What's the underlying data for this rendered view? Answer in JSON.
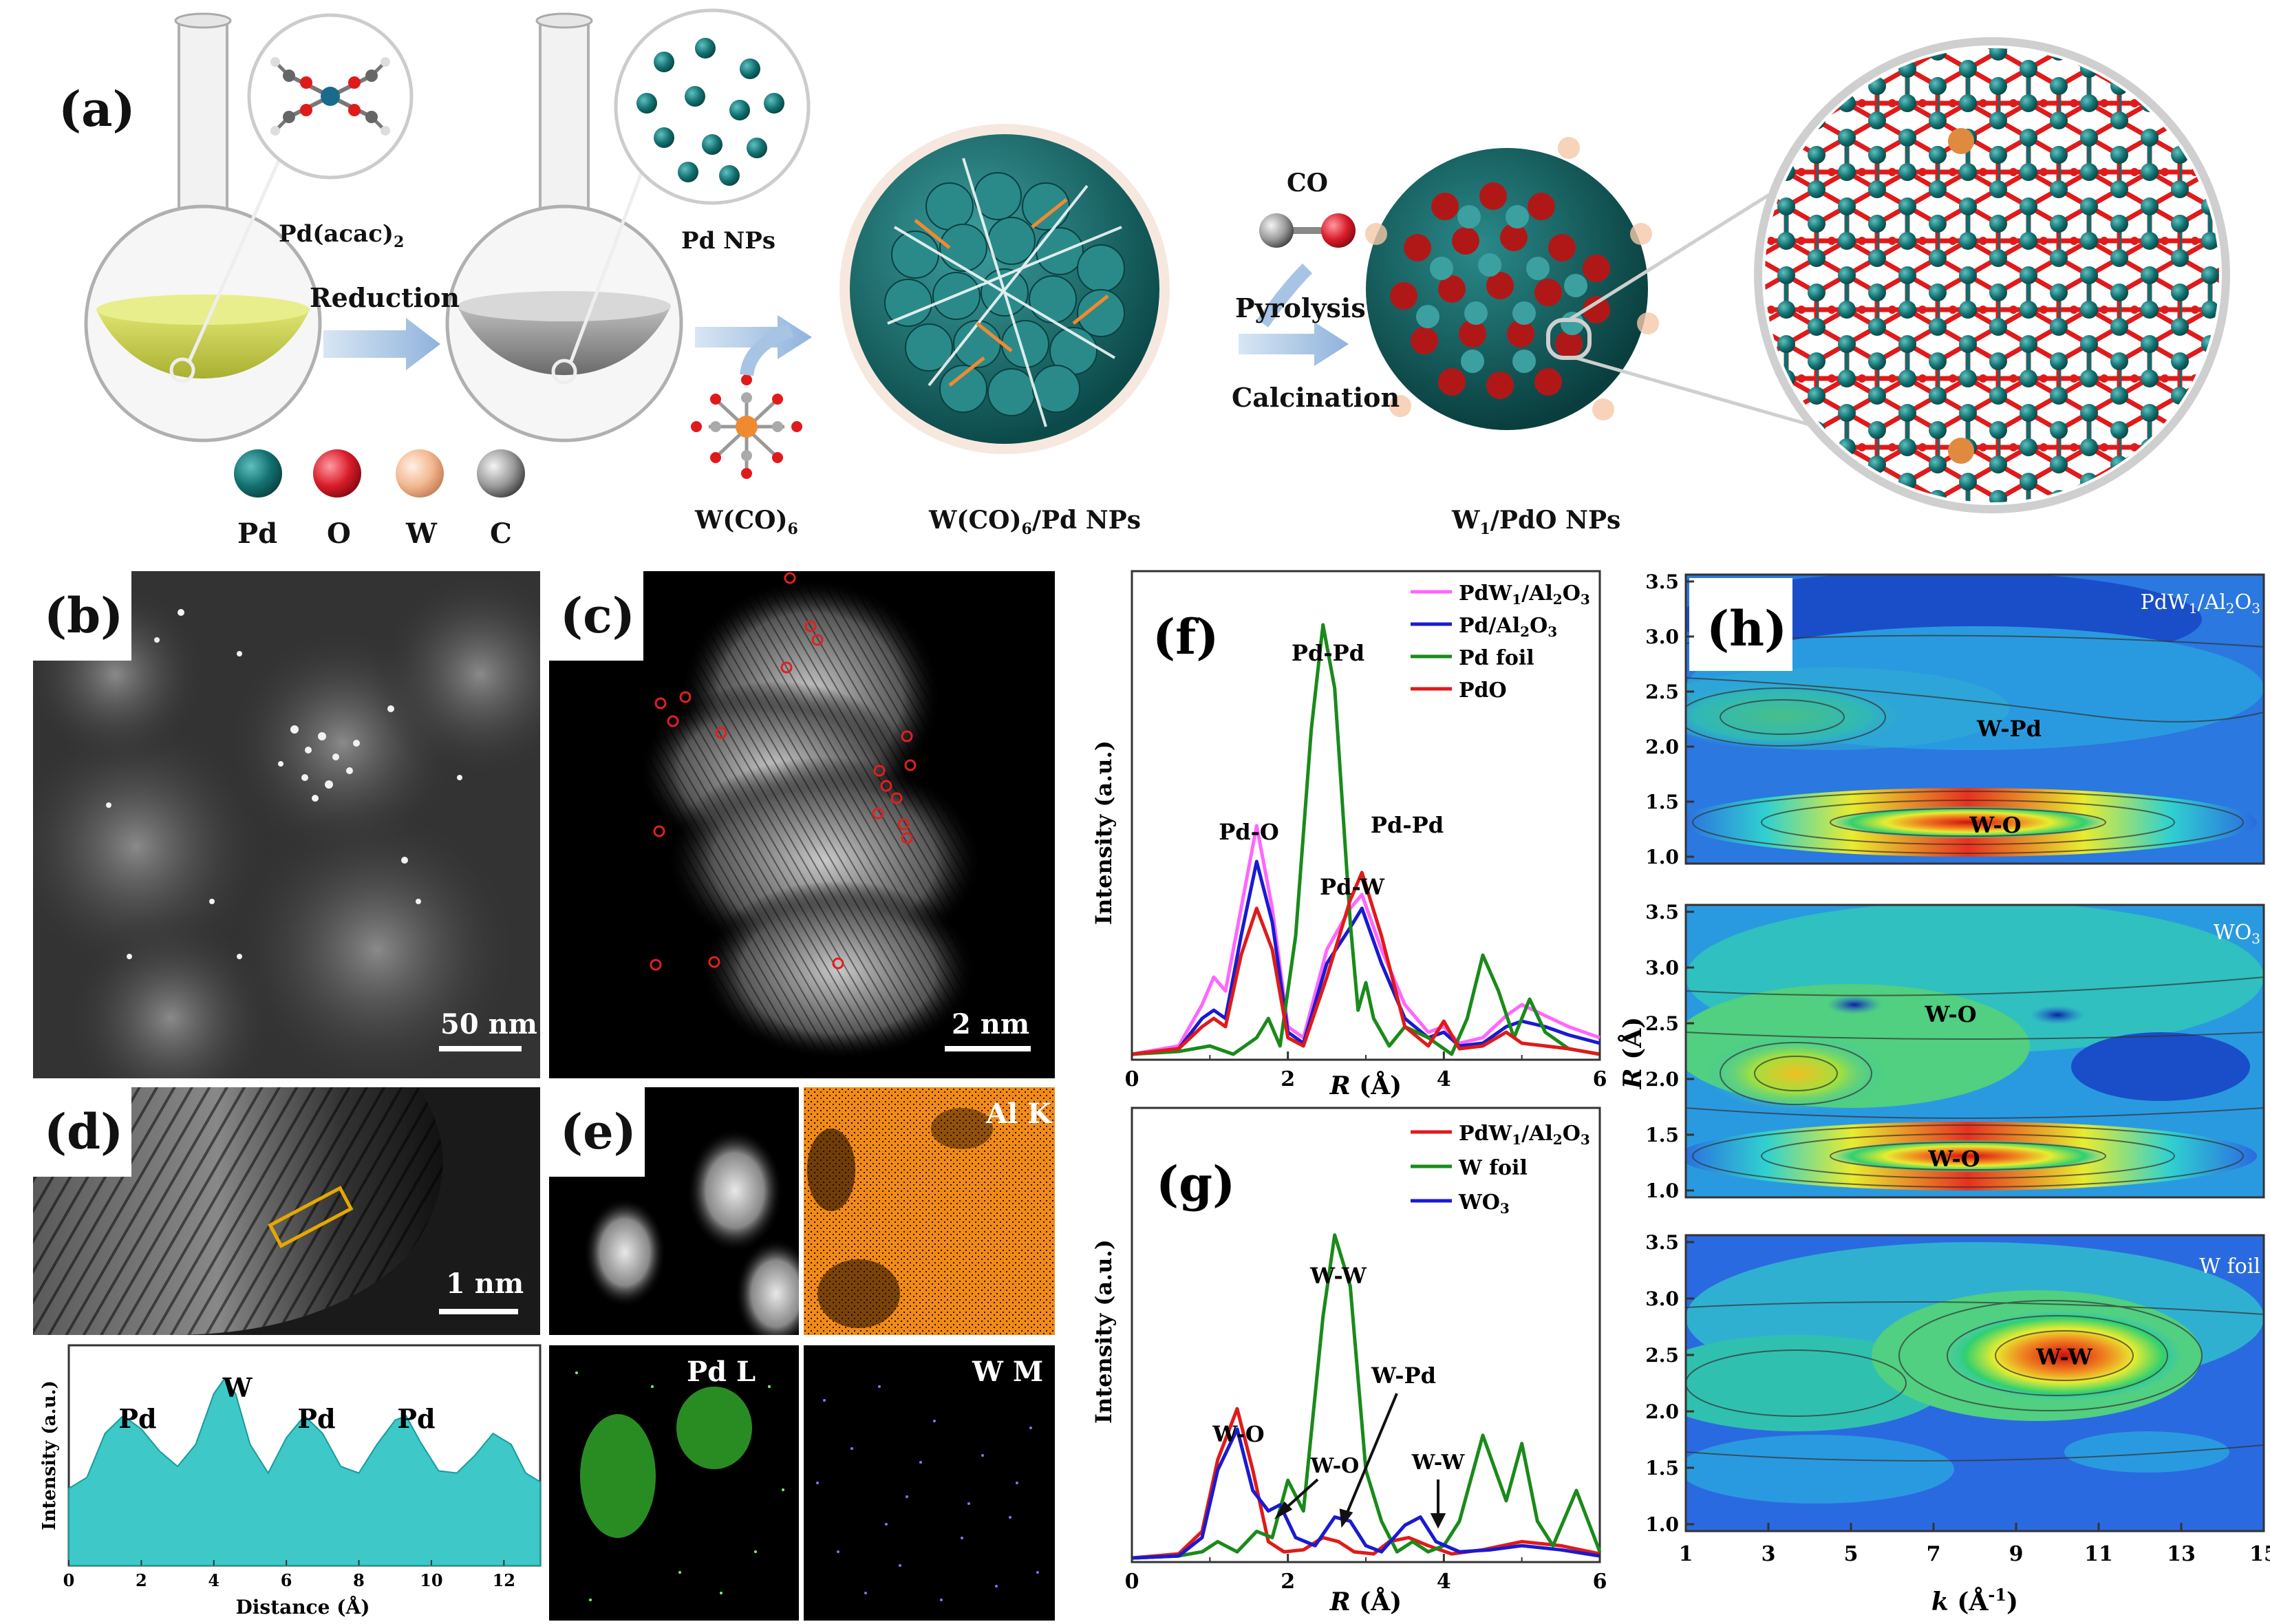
{
  "panel_a": {
    "label": "(a)",
    "flask1_label": "Pd(acac)",
    "flask1_sub": "2",
    "flask2_label": "Pd NPs",
    "arrow1_label": "Reduction",
    "precursor_label": "W(CO)",
    "precursor_sub": "6",
    "np1_label_pre": "W(CO)",
    "np1_label_sub": "6",
    "np1_label_post": "/Pd NPs",
    "gas_label": "CO",
    "arrow2_top": "Pyrolysis",
    "arrow2_bottom": "Calcination",
    "np2_label_pre": "W",
    "np2_label_sub": "1",
    "np2_label_post": "/PdO NPs",
    "legend": [
      {
        "label": "Pd",
        "color": "#1a7a7a"
      },
      {
        "label": "O",
        "color": "#e02030"
      },
      {
        "label": "W",
        "color": "#f2b890"
      },
      {
        "label": "C",
        "color": "#8a8a8a"
      }
    ]
  },
  "panel_b": {
    "label": "(b)",
    "scale": "50 nm"
  },
  "panel_c": {
    "label": "(c)",
    "scale": "2 nm"
  },
  "panel_d": {
    "label": "(d)",
    "scale": "1 nm"
  },
  "panel_e": {
    "label": "(e)",
    "map_al": "Al K",
    "map_pd": "Pd L",
    "map_w": "W M"
  },
  "panel_d_profile": {
    "ylabel": "Intensity (a.u.)",
    "xlabel": "Distance (Å)",
    "xticks": [
      "0",
      "2",
      "4",
      "6",
      "8",
      "10",
      "12"
    ],
    "peak_labels": [
      "Pd",
      "W",
      "Pd",
      "Pd"
    ]
  },
  "chart_data": [
    {
      "type": "area",
      "panel": "d-profile",
      "xlabel": "Distance (Å)",
      "ylabel": "Intensity (a.u.)",
      "xlim": [
        0,
        13
      ],
      "x": [
        0,
        0.5,
        1.0,
        1.5,
        2.0,
        2.5,
        3.0,
        3.5,
        4.0,
        4.3,
        4.6,
        5.0,
        5.5,
        6.0,
        6.5,
        7.0,
        7.5,
        8.0,
        8.5,
        9.0,
        9.3,
        9.7,
        10.2,
        10.7,
        11.2,
        11.7,
        12.2,
        12.6,
        13.0
      ],
      "values": [
        0.35,
        0.4,
        0.6,
        0.68,
        0.62,
        0.52,
        0.45,
        0.55,
        0.78,
        0.85,
        0.78,
        0.55,
        0.42,
        0.58,
        0.68,
        0.6,
        0.45,
        0.42,
        0.55,
        0.66,
        0.68,
        0.56,
        0.43,
        0.42,
        0.5,
        0.6,
        0.55,
        0.42,
        0.38
      ],
      "annotations": [
        "Pd",
        "W",
        "Pd",
        "Pd"
      ]
    },
    {
      "type": "line",
      "panel": "f",
      "xlabel": "R (Å)",
      "ylabel": "Intensity (a.u.)",
      "xlim": [
        0,
        6
      ],
      "xticks": [
        "0",
        "2",
        "4",
        "6"
      ],
      "annotations": [
        "Pd-Pd",
        "Pd-O",
        "Pd-Pd",
        "Pd-W"
      ],
      "series": [
        {
          "name": "PdW1/Al2O3",
          "color": "#ff66ff",
          "x": [
            0,
            0.6,
            0.9,
            1.05,
            1.2,
            1.4,
            1.6,
            1.8,
            2.0,
            2.2,
            2.5,
            2.8,
            2.95,
            3.2,
            3.5,
            3.8,
            4.0,
            4.2,
            4.5,
            4.8,
            5.0,
            5.3,
            5.6,
            6.0
          ],
          "values": [
            0.02,
            0.05,
            0.2,
            0.3,
            0.25,
            0.55,
            0.85,
            0.55,
            0.12,
            0.08,
            0.4,
            0.55,
            0.6,
            0.4,
            0.2,
            0.1,
            0.12,
            0.06,
            0.08,
            0.16,
            0.2,
            0.16,
            0.12,
            0.08
          ]
        },
        {
          "name": "Pd/Al2O3",
          "color": "#1a1ad0",
          "x": [
            0,
            0.6,
            0.9,
            1.05,
            1.2,
            1.4,
            1.6,
            1.8,
            2.0,
            2.2,
            2.5,
            2.8,
            2.95,
            3.2,
            3.5,
            3.8,
            4.0,
            4.2,
            4.5,
            4.8,
            5.0,
            5.3,
            5.6,
            6.0
          ],
          "values": [
            0.02,
            0.04,
            0.15,
            0.18,
            0.15,
            0.45,
            0.72,
            0.5,
            0.1,
            0.06,
            0.35,
            0.48,
            0.55,
            0.35,
            0.15,
            0.08,
            0.1,
            0.05,
            0.06,
            0.12,
            0.14,
            0.12,
            0.09,
            0.06
          ]
        },
        {
          "name": "Pd foil",
          "color": "#1a8a1a",
          "x": [
            0,
            0.6,
            1.0,
            1.3,
            1.6,
            1.75,
            1.9,
            2.1,
            2.3,
            2.45,
            2.6,
            2.8,
            2.9,
            3.0,
            3.1,
            3.3,
            3.5,
            3.8,
            4.1,
            4.3,
            4.5,
            4.7,
            4.9,
            5.1,
            5.3,
            5.6,
            6.0
          ],
          "values": [
            0.02,
            0.03,
            0.05,
            0.02,
            0.08,
            0.15,
            0.05,
            0.45,
            1.2,
            1.58,
            1.35,
            0.5,
            0.18,
            0.28,
            0.15,
            0.05,
            0.12,
            0.08,
            0.02,
            0.15,
            0.38,
            0.25,
            0.08,
            0.22,
            0.1,
            0.04,
            0.02
          ]
        },
        {
          "name": "PdO",
          "color": "#e01a1a",
          "x": [
            0,
            0.6,
            0.9,
            1.05,
            1.2,
            1.4,
            1.6,
            1.8,
            2.0,
            2.2,
            2.5,
            2.8,
            2.95,
            3.2,
            3.5,
            3.8,
            4.0,
            4.2,
            4.5,
            4.8,
            5.0,
            5.3,
            5.6,
            6.0
          ],
          "values": [
            0.02,
            0.04,
            0.12,
            0.15,
            0.12,
            0.38,
            0.55,
            0.4,
            0.08,
            0.05,
            0.3,
            0.58,
            0.68,
            0.45,
            0.12,
            0.05,
            0.14,
            0.04,
            0.05,
            0.1,
            0.06,
            0.05,
            0.04,
            0.02
          ]
        }
      ]
    },
    {
      "type": "line",
      "panel": "g",
      "xlabel": "R (Å)",
      "ylabel": "Intensity (a.u.)",
      "xlim": [
        0,
        6
      ],
      "xticks": [
        "0",
        "2",
        "4",
        "6"
      ],
      "annotations": [
        "W-W",
        "W-O",
        "W-Pd",
        "W-O",
        "W-W"
      ],
      "series": [
        {
          "name": "PdW1/Al2O3",
          "color": "#e01a1a",
          "x": [
            0,
            0.6,
            0.9,
            1.1,
            1.35,
            1.55,
            1.75,
            1.95,
            2.2,
            2.45,
            2.65,
            2.85,
            3.1,
            3.3,
            3.55,
            3.8,
            4.1,
            4.5,
            5.0,
            5.5,
            6.0
          ],
          "values": [
            0.02,
            0.04,
            0.15,
            0.5,
            0.75,
            0.45,
            0.1,
            0.05,
            0.06,
            0.12,
            0.1,
            0.05,
            0.04,
            0.1,
            0.12,
            0.08,
            0.04,
            0.06,
            0.1,
            0.08,
            0.04
          ]
        },
        {
          "name": "W foil",
          "color": "#1a8a1a",
          "x": [
            0,
            0.6,
            0.9,
            1.1,
            1.35,
            1.6,
            1.8,
            2.0,
            2.2,
            2.45,
            2.6,
            2.8,
            3.0,
            3.2,
            3.4,
            3.6,
            3.8,
            4.0,
            4.2,
            4.5,
            4.8,
            5.0,
            5.2,
            5.4,
            5.7,
            6.0
          ],
          "values": [
            0.02,
            0.03,
            0.05,
            0.1,
            0.05,
            0.15,
            0.12,
            0.4,
            0.25,
            1.2,
            1.6,
            1.35,
            0.45,
            0.2,
            0.05,
            0.1,
            0.05,
            0.08,
            0.2,
            0.62,
            0.3,
            0.58,
            0.2,
            0.08,
            0.35,
            0.05
          ]
        },
        {
          "name": "WO3",
          "color": "#1a1ad0",
          "x": [
            0,
            0.6,
            0.9,
            1.1,
            1.35,
            1.55,
            1.75,
            1.9,
            2.1,
            2.35,
            2.6,
            2.8,
            3.0,
            3.2,
            3.5,
            3.7,
            3.9,
            4.2,
            4.6,
            5.0,
            5.5,
            6.0
          ],
          "values": [
            0.02,
            0.03,
            0.12,
            0.45,
            0.65,
            0.35,
            0.25,
            0.28,
            0.12,
            0.08,
            0.22,
            0.2,
            0.08,
            0.05,
            0.18,
            0.22,
            0.1,
            0.05,
            0.06,
            0.08,
            0.06,
            0.03
          ]
        }
      ]
    },
    {
      "type": "heatmap",
      "panel": "h",
      "xlabel": "k (Å-1)",
      "ylabel": "R (Å)",
      "xlim": [
        1,
        15
      ],
      "xticks": [
        "1",
        "3",
        "5",
        "7",
        "9",
        "11",
        "13",
        "15"
      ],
      "yticks": [
        "1.0",
        "1.5",
        "2.0",
        "2.5",
        "3.0",
        "3.5"
      ],
      "subplots": [
        {
          "name": "PdW1/Al2O3",
          "ylim": [
            1.0,
            3.5
          ],
          "annotations": [
            "W-Pd",
            "W-O"
          ]
        },
        {
          "name": "WO3",
          "ylim": [
            1.0,
            3.5
          ],
          "annotations": [
            "W-O",
            "W-O"
          ]
        },
        {
          "name": "W foil",
          "ylim": [
            1.0,
            3.5
          ],
          "annotations": [
            "W-W"
          ]
        }
      ]
    }
  ],
  "panel_f": {
    "label": "(f)",
    "ylabel": "Intensity (a.u.)",
    "xlabel_italic": "R",
    "xlabel_rest": " (Å)",
    "xticks": [
      "0",
      "2",
      "4",
      "6"
    ],
    "ann_pdpd_top": "Pd-Pd",
    "ann_pdo": "Pd-O",
    "ann_pdpd": "Pd-Pd",
    "ann_pdw": "Pd-W",
    "legend": [
      {
        "pre": "PdW",
        "sub": "1",
        "mid": "/Al",
        "sub2": "2",
        "post": "O",
        "sub3": "3",
        "color": "#ff66ff"
      },
      {
        "pre": "Pd/Al",
        "sub": "2",
        "mid": "O",
        "sub2": "3",
        "post": "",
        "sub3": "",
        "color": "#1a1ad0"
      },
      {
        "pre": "Pd foil",
        "sub": "",
        "mid": "",
        "sub2": "",
        "post": "",
        "sub3": "",
        "color": "#1a8a1a"
      },
      {
        "pre": "PdO",
        "sub": "",
        "mid": "",
        "sub2": "",
        "post": "",
        "sub3": "",
        "color": "#e01a1a"
      }
    ]
  },
  "panel_g": {
    "label": "(g)",
    "ylabel": "Intensity (a.u.)",
    "xlabel_italic": "R",
    "xlabel_rest": " (Å)",
    "xticks": [
      "0",
      "2",
      "4",
      "6"
    ],
    "ann_ww_top": "W-W",
    "ann_wo": "W-O",
    "ann_wpd": "W-Pd",
    "ann_wo2": "W-O",
    "ann_ww2": "W-W",
    "legend": [
      {
        "pre": "PdW",
        "sub": "1",
        "mid": "/Al",
        "sub2": "2",
        "post": "O",
        "sub3": "3",
        "color": "#e01a1a"
      },
      {
        "pre": "W foil",
        "sub": "",
        "mid": "",
        "sub2": "",
        "post": "",
        "sub3": "",
        "color": "#1a8a1a"
      },
      {
        "pre": "WO",
        "sub": "3",
        "mid": "",
        "sub2": "",
        "post": "",
        "sub3": "",
        "color": "#1a1ad0"
      }
    ]
  },
  "panel_h": {
    "label": "(h)",
    "ylabel_italic": "R",
    "ylabel_rest": " (Å)",
    "xlabel_italic": "k",
    "xlabel_rest": " (Å",
    "xlabel_sup": "-1",
    "xlabel_end": ")",
    "xticks": [
      "1",
      "3",
      "5",
      "7",
      "9",
      "11",
      "13",
      "15"
    ],
    "yticks": [
      "1.0",
      "1.5",
      "2.0",
      "2.5",
      "3.0",
      "3.5"
    ],
    "sub1_pre": "PdW",
    "sub1_s1": "1",
    "sub1_mid": "/Al",
    "sub1_s2": "2",
    "sub1_post": "O",
    "sub1_s3": "3",
    "sub1_ann1": "W-Pd",
    "sub1_ann2": "W-O",
    "sub2_pre": "WO",
    "sub2_s1": "3",
    "sub2_ann1": "W-O",
    "sub2_ann2": "W-O",
    "sub3_name": "W foil",
    "sub3_ann1": "W-W"
  }
}
